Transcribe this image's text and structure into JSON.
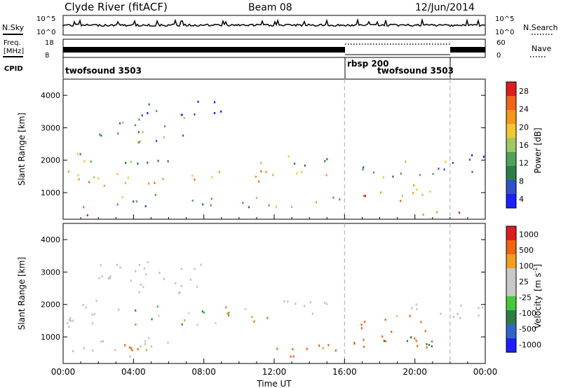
{
  "header": {
    "station": "Clyde River (fitACF)",
    "beam": "Beam 08",
    "date": "12/Jun/2014"
  },
  "summary": {
    "nsky_label": "N.Sky",
    "nsky_ticks": [
      "10^5",
      "10^0"
    ],
    "nsearch_label": "N.Search",
    "freq_label_1": "Freq.",
    "freq_label_2": "[MHz]",
    "freq_ticks": [
      "18",
      "8"
    ],
    "nave_label": "Nave",
    "nave_ticks": [
      "60",
      "0"
    ],
    "nsearch_ticks": [
      "10^5",
      "10^0"
    ],
    "cpid_label": "CPID",
    "modes": [
      {
        "name": "twofsound 3503",
        "start_hour": 0,
        "end_hour": 16
      },
      {
        "name": "rbsp 200",
        "start_hour": 16,
        "end_hour": 22
      },
      {
        "name": "twofsound 3503",
        "start_hour": 16,
        "end_hour": 22
      }
    ]
  },
  "colors": {
    "power_scale": [
      "#1e1eff",
      "#2e50c8",
      "#2e7d46",
      "#52a05a",
      "#a0c864",
      "#f0c832",
      "#f5961e",
      "#f0641e",
      "#dc1e1e"
    ],
    "velocity_scale": [
      "#1e1eff",
      "#3264c8",
      "#2e7d46",
      "#46c83c",
      "#c8c8c8",
      "#c8c8c8",
      "#f0a01e",
      "#f06414",
      "#dc1e1e"
    ],
    "ground_scatter": "#c0c0b8"
  },
  "chart_data": [
    {
      "type": "heatmap",
      "name": "power",
      "ylabel": "Slant Range [km]",
      "x_ticks": [
        "00:00",
        "04:00",
        "08:00",
        "12:00",
        "16:00",
        "20:00",
        "00:00"
      ],
      "y_ticks": [
        "1000",
        "2000",
        "3000",
        "4000"
      ],
      "xlim_hours": [
        0,
        24
      ],
      "ylim_km": [
        180,
        4500
      ],
      "colorbar": {
        "label": "Power [dB]",
        "ticks": [
          "28",
          "24",
          "20",
          "16",
          "12",
          "8",
          "4"
        ],
        "range": [
          0,
          30
        ]
      },
      "mode_change_hours": [
        16,
        22
      ],
      "bands": [
        {
          "t0": 0,
          "t1": 3.5,
          "r0": 1200,
          "r1": 1750,
          "p": 22
        },
        {
          "t0": 0.5,
          "t1": 6,
          "r0": 1800,
          "r1": 2250,
          "p": 12
        },
        {
          "t0": 2,
          "t1": 7,
          "r0": 2500,
          "r1": 3400,
          "p": 10
        },
        {
          "t0": 4,
          "t1": 9.5,
          "r0": 3400,
          "r1": 3900,
          "p": 6
        },
        {
          "t0": 3,
          "t1": 9,
          "r0": 1300,
          "r1": 1700,
          "p": 20
        },
        {
          "t0": 8,
          "t1": 15,
          "r0": 1350,
          "r1": 1700,
          "p": 18
        },
        {
          "t0": 11,
          "t1": 15,
          "r0": 1800,
          "r1": 2200,
          "p": 14
        },
        {
          "t0": 0.8,
          "t1": 2.2,
          "r0": 250,
          "r1": 700,
          "p": 28
        },
        {
          "t0": 2.5,
          "t1": 9,
          "r0": 600,
          "r1": 1000,
          "p": 12
        },
        {
          "t0": 10,
          "t1": 16,
          "r0": 500,
          "r1": 900,
          "p": 14
        },
        {
          "t0": 16.5,
          "t1": 21,
          "r0": 700,
          "r1": 1300,
          "p": 22
        },
        {
          "t0": 17,
          "t1": 24,
          "r0": 1500,
          "r1": 2000,
          "p": 12
        },
        {
          "t0": 19.5,
          "t1": 22.5,
          "r0": 200,
          "r1": 450,
          "p": 28
        },
        {
          "t0": 21.5,
          "t1": 24,
          "r0": 1900,
          "r1": 2300,
          "p": 8
        }
      ]
    },
    {
      "type": "heatmap",
      "name": "velocity",
      "ylabel": "Slant Range [km]",
      "xlabel": "Time UT",
      "x_ticks": [
        "00:00",
        "04:00",
        "08:00",
        "12:00",
        "16:00",
        "20:00",
        "00:00"
      ],
      "y_ticks": [
        "1000",
        "2000",
        "3000",
        "4000"
      ],
      "xlim_hours": [
        0,
        24
      ],
      "ylim_km": [
        180,
        4500
      ],
      "colorbar": {
        "label_main": "Velocity",
        "label_unit": "[m s",
        "label_exp": "-1",
        "label_end": "]",
        "ticks": [
          "1000",
          "500",
          "100",
          "25",
          "-25",
          "-100",
          "-500",
          "-1000"
        ]
      },
      "mode_change_hours": [
        16,
        22
      ],
      "bands": [
        {
          "t0": 0,
          "t1": 3.5,
          "r0": 1200,
          "r1": 2200,
          "v": 0,
          "g": 1
        },
        {
          "t0": 2,
          "t1": 8,
          "r0": 2300,
          "r1": 3500,
          "v": 0,
          "g": 1
        },
        {
          "t0": 4,
          "t1": 9.5,
          "r0": 1400,
          "r1": 2000,
          "v": 120,
          "g": 0
        },
        {
          "t0": 8,
          "t1": 12,
          "r0": 1500,
          "r1": 2000,
          "v": -150,
          "g": 0
        },
        {
          "t0": 0.5,
          "t1": 6,
          "r0": 400,
          "r1": 1000,
          "v": 0,
          "g": 1
        },
        {
          "t0": 3,
          "t1": 8,
          "r0": 600,
          "r1": 900,
          "v": -120,
          "g": 0
        },
        {
          "t0": 10,
          "t1": 16,
          "r0": 400,
          "r1": 800,
          "v": -200,
          "g": 0
        },
        {
          "t0": 16.5,
          "t1": 21,
          "r0": 600,
          "r1": 1700,
          "v": -300,
          "g": 0
        },
        {
          "t0": 18,
          "t1": 21,
          "r0": 700,
          "r1": 1200,
          "v": 300,
          "g": 0
        },
        {
          "t0": 18,
          "t1": 24,
          "r0": 1600,
          "r1": 2100,
          "v": 0,
          "g": 1
        },
        {
          "t0": 12,
          "t1": 16,
          "r0": 1700,
          "r1": 2200,
          "v": 0,
          "g": 1
        }
      ]
    }
  ]
}
